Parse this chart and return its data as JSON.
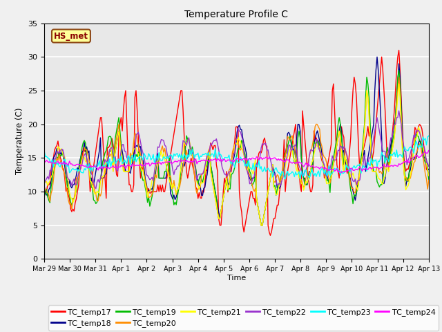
{
  "title": "Temperature Profile C",
  "xlabel": "Time",
  "ylabel": "Temperature (C)",
  "ylim": [
    0,
    35
  ],
  "yticks": [
    0,
    5,
    10,
    15,
    20,
    25,
    30,
    35
  ],
  "x_labels": [
    "Mar 29",
    "Mar 30",
    "Mar 31",
    "Apr 1",
    "Apr 2",
    "Apr 3",
    "Apr 4",
    "Apr 5",
    "Apr 6",
    "Apr 7",
    "Apr 8",
    "Apr 9",
    "Apr 10",
    "Apr 11",
    "Apr 12",
    "Apr 13"
  ],
  "annotation_text": "HS_met",
  "annotation_color": "#8B0000",
  "annotation_bg": "#FFFF99",
  "annotation_border": "#8B4513",
  "series_colors": {
    "TC_temp17": "#FF0000",
    "TC_temp18": "#00008B",
    "TC_temp19": "#00BB00",
    "TC_temp20": "#FF8C00",
    "TC_temp21": "#FFFF00",
    "TC_temp22": "#9932CC",
    "TC_temp23": "#00FFFF",
    "TC_temp24": "#FF00FF"
  },
  "background_color": "#E8E8E8",
  "grid_color": "#FFFFFF",
  "n_points": 336,
  "fig_width": 6.4,
  "fig_height": 4.8,
  "dpi": 100
}
